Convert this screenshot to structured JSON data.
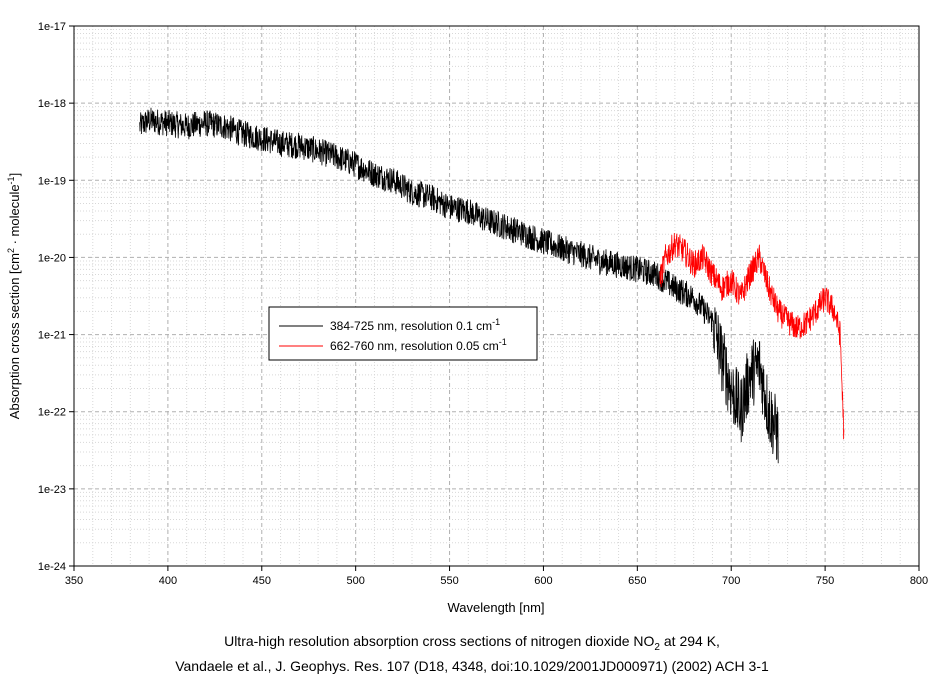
{
  "chart_data": {
    "type": "line",
    "xlabel": "Wavelength [nm]",
    "ylabel": "Absorption cross section [cm2 · molecule-1]",
    "xlim": [
      350,
      800
    ],
    "ylim": [
      1e-24,
      1e-17
    ],
    "yscale": "log",
    "grid": true,
    "x_ticks": [
      "350",
      "400",
      "450",
      "500",
      "550",
      "600",
      "650",
      "700",
      "750",
      "800"
    ],
    "y_ticks": [
      "1e-24",
      "1e-23",
      "1e-22",
      "1e-21",
      "1e-20",
      "1e-19",
      "1e-18",
      "1e-17"
    ],
    "legend_position": "center-left",
    "series": [
      {
        "name": "384-725 nm, resolution 0.1 cm-1",
        "color": "#000000",
        "x": [
          385,
          390,
          400,
          410,
          420,
          430,
          440,
          450,
          460,
          470,
          480,
          490,
          500,
          510,
          520,
          530,
          540,
          550,
          560,
          570,
          580,
          590,
          600,
          610,
          620,
          630,
          640,
          650,
          660,
          670,
          680,
          690,
          695,
          700,
          705,
          710,
          715,
          720,
          725
        ],
        "y": [
          5e-19,
          6e-19,
          5.5e-19,
          5e-19,
          5.5e-19,
          5e-19,
          4e-19,
          3.5e-19,
          3e-19,
          2.8e-19,
          2.4e-19,
          2e-19,
          1.6e-19,
          1.2e-19,
          1e-19,
          7e-20,
          6e-20,
          4.5e-20,
          4e-20,
          3e-20,
          2.5e-20,
          2e-20,
          1.6e-20,
          1.3e-20,
          1.1e-20,
          9e-21,
          8e-21,
          7e-21,
          6e-21,
          4e-21,
          3e-21,
          1.5e-21,
          5e-22,
          2e-22,
          1e-22,
          3e-22,
          4e-22,
          1e-22,
          5e-23
        ]
      },
      {
        "name": "662-760 nm, resolution 0.05 cm-1",
        "color": "#ff0000",
        "x": [
          662,
          665,
          670,
          675,
          680,
          685,
          690,
          695,
          700,
          705,
          710,
          715,
          720,
          725,
          730,
          735,
          740,
          745,
          750,
          755,
          758,
          760
        ],
        "y": [
          5e-21,
          1e-20,
          1.5e-20,
          1.2e-20,
          8e-21,
          1e-20,
          6e-21,
          4e-21,
          5e-21,
          3e-21,
          6e-21,
          1e-20,
          4e-21,
          2e-21,
          1.5e-21,
          1.2e-21,
          1.4e-21,
          2e-21,
          3e-21,
          2e-21,
          1e-21,
          5e-23
        ]
      }
    ]
  },
  "axis": {
    "xlabel": "Wavelength [nm]",
    "ylabel_main": "Absorption cross section [cm",
    "ylabel_sup1": "2",
    "ylabel_mid": " · molecule",
    "ylabel_sup2": "-1",
    "ylabel_end": "]"
  },
  "legend": {
    "item1_main": "384-725 nm, resolution 0.1 cm",
    "item1_sup": "-1",
    "item2_main": "662-760 nm, resolution 0.05 cm",
    "item2_sup": "-1"
  },
  "caption": {
    "line1_pre": "Ultra-high resolution absorption cross sections of nitrogen dioxide NO",
    "line1_sub": "2",
    "line1_post": " at 294 K,",
    "line2": "Vandaele et al., J. Geophys. Res. 107 (D18, 4348, doi:10.1029/2001JD000971) (2002) ACH 3-1"
  }
}
